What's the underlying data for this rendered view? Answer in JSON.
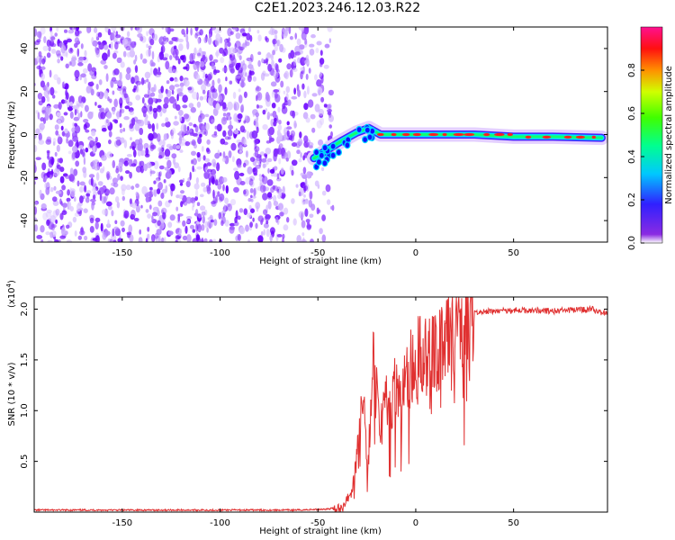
{
  "title": "C2E1.2023.246.12.03.R22",
  "chart_data": [
    {
      "type": "heatmap",
      "xlabel": "Height of straight line (km)",
      "ylabel": "Frequency (Hz)",
      "xlim": [
        -195,
        98
      ],
      "ylim": [
        -50,
        50
      ],
      "xticks": [
        -150,
        -100,
        -50,
        0,
        50
      ],
      "yticks": [
        -40,
        -20,
        0,
        20,
        40
      ],
      "colorbar": {
        "label": "Normalized spectral amplitude",
        "range": [
          0,
          1
        ],
        "ticks": [
          0.0,
          0.2,
          0.4,
          0.6,
          0.8
        ],
        "tick_labels": [
          "0.0",
          "0.2",
          "0.4",
          "0.6",
          "0.8"
        ]
      },
      "colors": {
        "noise": "#7a1cff",
        "low": "#9b30ff",
        "mid": "#00e0ff",
        "high": "#00ff44",
        "peak": "#ff2020"
      },
      "features": {
        "noise_region_x": [
          -195,
          -42
        ],
        "signal_track": [
          {
            "x": -52,
            "y": -11
          },
          {
            "x": -45,
            "y": -7
          },
          {
            "x": -38,
            "y": -3
          },
          {
            "x": -30,
            "y": 1
          },
          {
            "x": -24,
            "y": 3
          },
          {
            "x": -18,
            "y": 0
          },
          {
            "x": -5,
            "y": 0
          },
          {
            "x": 10,
            "y": 0
          },
          {
            "x": 30,
            "y": 0
          },
          {
            "x": 50,
            "y": -1
          },
          {
            "x": 70,
            "y": -1
          },
          {
            "x": 95,
            "y": -1.5
          }
        ]
      }
    },
    {
      "type": "line",
      "xlabel": "Height of straight line (km)",
      "ylabel": "SNR (10 * v/v)",
      "multiplier_label": "(x10",
      "multiplier_exp": "4",
      "multiplier_close": ")",
      "xlim": [
        -195,
        98
      ],
      "ylim": [
        0,
        2.12
      ],
      "xticks": [
        -150,
        -100,
        -50,
        0,
        50
      ],
      "yticks": [
        0.5,
        1.0,
        1.5,
        2.0
      ],
      "ytick_labels": [
        "0.5",
        "1.0",
        "1.5",
        "2.0"
      ],
      "color": "#e03030",
      "series": [
        {
          "x": [
            -195,
            -150,
            -100,
            -60,
            -45,
            -38,
            -33,
            -30,
            -27,
            -25,
            -23,
            -21,
            -19,
            -17,
            -15,
            -13,
            -10,
            -5,
            0,
            5,
            10,
            15,
            20,
            25,
            30,
            40,
            50,
            60,
            70,
            80,
            90,
            98
          ],
          "values": [
            0.02,
            0.02,
            0.02,
            0.02,
            0.03,
            0.05,
            0.18,
            0.6,
            1.15,
            0.5,
            0.9,
            1.7,
            1.0,
            0.85,
            1.2,
            1.05,
            1.25,
            1.35,
            1.5,
            1.55,
            1.6,
            1.75,
            1.88,
            1.92,
            1.97,
            1.98,
            1.99,
            1.99,
            1.98,
            1.99,
            2.0,
            1.95
          ]
        }
      ]
    }
  ]
}
